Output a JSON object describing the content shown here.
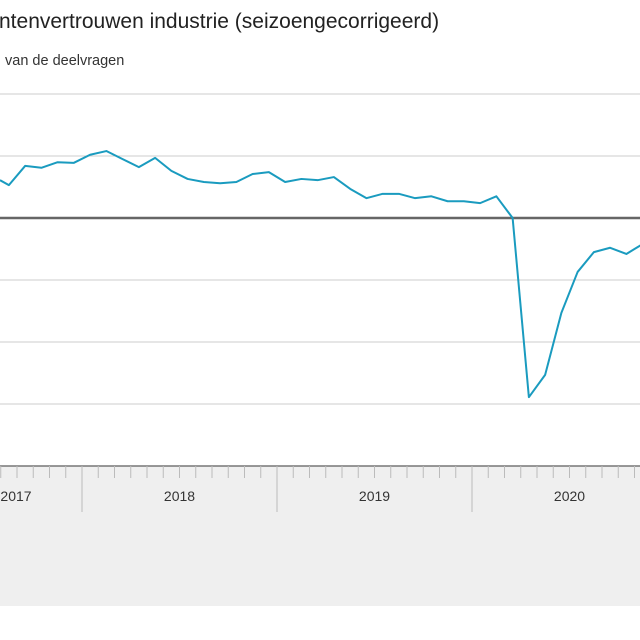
{
  "chart_data": {
    "type": "line",
    "title": "ntenvertrouwen industrie (seizoengecorrigeerd)",
    "subtitle": "van de deelvragen",
    "xlabel": "",
    "ylabel": "",
    "ylim": [
      -40,
      20
    ],
    "y_gridlines": [
      20,
      10,
      0,
      -10,
      -20,
      -30,
      -40
    ],
    "grid": true,
    "zero_line": true,
    "x_tick_labels": [
      "2017",
      "2018",
      "2019",
      "2020"
    ],
    "x": [
      "2017-07",
      "2017-08",
      "2017-09",
      "2017-10",
      "2017-11",
      "2017-12",
      "2018-01",
      "2018-02",
      "2018-03",
      "2018-04",
      "2018-05",
      "2018-06",
      "2018-07",
      "2018-08",
      "2018-09",
      "2018-10",
      "2018-11",
      "2018-12",
      "2019-01",
      "2019-02",
      "2019-03",
      "2019-04",
      "2019-05",
      "2019-06",
      "2019-07",
      "2019-08",
      "2019-09",
      "2019-10",
      "2019-11",
      "2019-12",
      "2020-01",
      "2020-02",
      "2020-03",
      "2020-04",
      "2020-05",
      "2020-06",
      "2020-07",
      "2020-08",
      "2020-09",
      "2020-10",
      "2020-11"
    ],
    "series": [
      {
        "values": [
          6.1,
          5.3,
          8.4,
          8.1,
          9.0,
          8.9,
          10.2,
          10.8,
          9.5,
          8.2,
          9.7,
          7.6,
          6.3,
          5.8,
          5.6,
          5.8,
          7.1,
          7.4,
          5.8,
          6.3,
          6.1,
          6.6,
          4.7,
          3.2,
          3.9,
          3.9,
          3.2,
          3.5,
          2.7,
          2.7,
          2.4,
          3.5,
          0.0,
          -28.9,
          -25.3,
          -15.3,
          -8.7,
          -5.5,
          -4.8,
          -5.8,
          -4.2
        ]
      }
    ],
    "colors": {
      "line": "#1a9bbf",
      "zero_line": "#666666",
      "grid": "#cccccc",
      "axis_band": "#efefef"
    }
  }
}
